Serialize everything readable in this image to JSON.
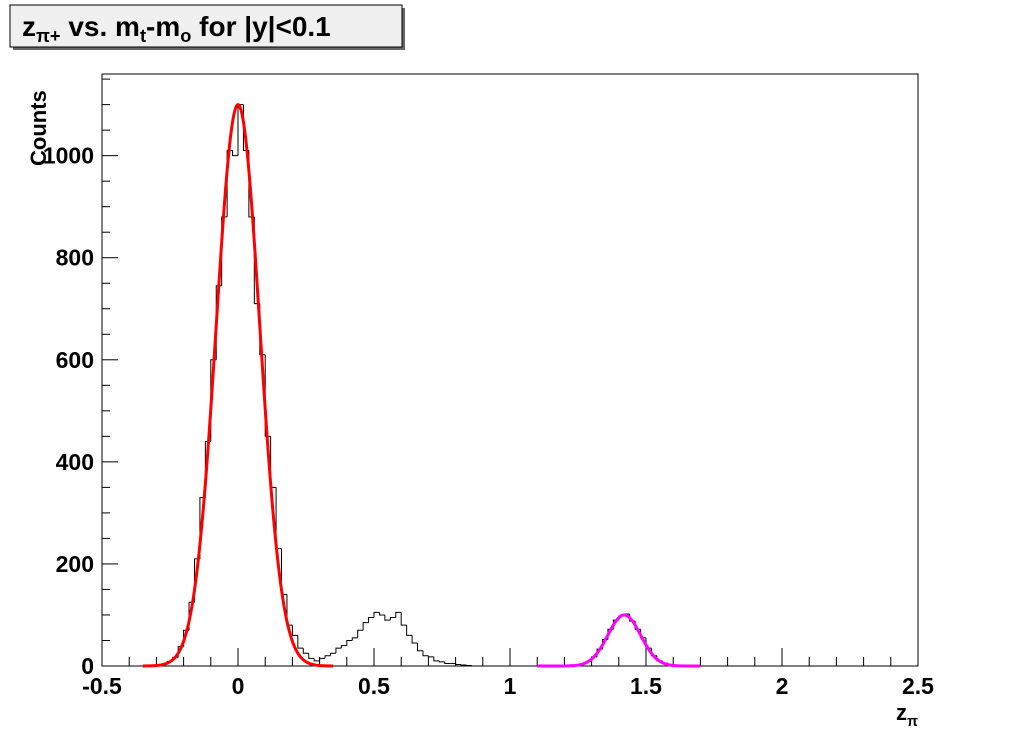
{
  "chart_data": {
    "type": "histogram",
    "title": [
      {
        "text": "z"
      },
      {
        "text": "π+",
        "subscript": true
      },
      {
        "text": " vs. m"
      },
      {
        "text": "t",
        "subscript": true
      },
      {
        "text": "-m"
      },
      {
        "text": "o",
        "subscript": true
      },
      {
        "text": " for |y|<0.1"
      }
    ],
    "x_label": [
      {
        "text": "z"
      },
      {
        "text": "π",
        "subscript": true
      }
    ],
    "y_label": "Counts",
    "color": "#000000",
    "bins": [
      -0.3,
      -0.28,
      -0.26,
      -0.24,
      -0.22,
      -0.2,
      -0.18,
      -0.16,
      -0.14,
      -0.12,
      -0.1,
      -0.08,
      -0.06,
      -0.04,
      -0.02,
      0,
      0.02,
      0.04,
      0.06,
      0.08,
      0.1,
      0.12,
      0.14,
      0.16,
      0.18,
      0.2,
      0.22,
      0.24,
      0.26,
      0.28,
      0.3,
      0.32,
      0.34,
      0.36,
      0.38,
      0.4,
      0.42,
      0.44,
      0.46,
      0.48,
      0.5,
      0.52,
      0.54,
      0.56,
      0.58,
      0.6,
      0.62,
      0.64,
      0.66,
      0.68,
      0.7,
      0.72,
      0.74,
      0.76,
      0.78,
      0.8,
      0.82,
      0.84,
      0.86,
      0.88,
      0.9,
      0.92,
      0.94,
      0.96,
      0.98,
      1,
      1.02,
      1.04,
      1.06,
      1.08,
      1.1,
      1.12,
      1.14,
      1.16,
      1.18,
      1.2,
      1.22,
      1.24,
      1.26,
      1.28,
      1.3,
      1.32,
      1.34,
      1.36,
      1.38,
      1.4,
      1.42,
      1.44,
      1.46,
      1.48,
      1.5,
      1.52,
      1.54,
      1.56,
      1.58,
      1.6,
      1.62,
      1.64,
      1.66,
      1.68,
      1.7
    ],
    "values": [
      2,
      3,
      9,
      17,
      38,
      70,
      125,
      210,
      330,
      440,
      600,
      745,
      880,
      1010,
      1000,
      1100,
      1010,
      880,
      710,
      610,
      450,
      350,
      230,
      140,
      80,
      60,
      35,
      25,
      15,
      10,
      15,
      20,
      25,
      35,
      40,
      50,
      55,
      70,
      85,
      95,
      105,
      100,
      90,
      95,
      105,
      80,
      60,
      45,
      30,
      20,
      18,
      10,
      8,
      5,
      5,
      3,
      2,
      1,
      0,
      0,
      0,
      0,
      0,
      0,
      0,
      0,
      0,
      0,
      0,
      0,
      0,
      0,
      0,
      0,
      1,
      0,
      1,
      2,
      4,
      9,
      18,
      33,
      52,
      72,
      90,
      98,
      102,
      88,
      72,
      55,
      35,
      20,
      10,
      6,
      2,
      1,
      0,
      0,
      0,
      0
    ],
    "fits": [
      {
        "color": "#ff0000",
        "amplitude": 1100,
        "mean": 0,
        "sigma": 0.08,
        "xrange": [
          -0.35,
          0.35
        ]
      },
      {
        "color": "#ff00ff",
        "amplitude": 100,
        "mean": 1.42,
        "sigma": 0.06,
        "xrange": [
          1.1,
          1.7
        ]
      }
    ],
    "xlim": [
      -0.5,
      2.5
    ],
    "xticks": [
      -0.5,
      0,
      0.5,
      1,
      1.5,
      2,
      2.5
    ],
    "x_minor_divisions": 5,
    "ylim": [
      0,
      1160
    ],
    "yticks": [
      0,
      200,
      400,
      600,
      800,
      1000
    ],
    "y_minor_divisions": 4
  }
}
